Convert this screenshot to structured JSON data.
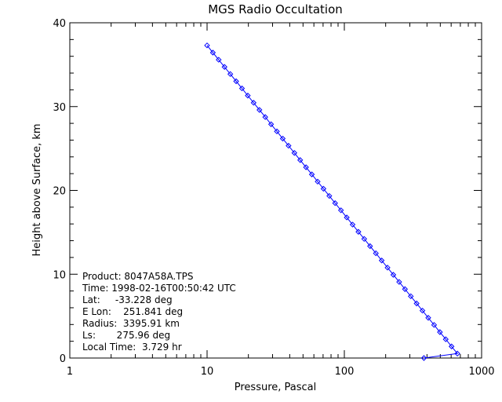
{
  "chart_data": {
    "type": "line",
    "title": "MGS Radio Occultation",
    "xlabel": "Pressure, Pascal",
    "ylabel": "Height above Surface, km",
    "xscale": "log",
    "xlim": [
      1,
      1000
    ],
    "ylim": [
      0,
      40
    ],
    "x_ticks": [
      "1",
      "10",
      "100",
      "1000"
    ],
    "y_ticks": [
      "0",
      "10",
      "20",
      "30",
      "40"
    ],
    "grid": false,
    "series": [
      {
        "marker": "diamond",
        "color": "#0000ff",
        "points": [
          [
            10.0,
            37.3
          ],
          [
            11.02,
            36.44
          ],
          [
            12.15,
            35.59
          ],
          [
            13.4,
            34.73
          ],
          [
            14.77,
            33.88
          ],
          [
            16.29,
            33.02
          ],
          [
            17.96,
            32.17
          ],
          [
            19.8,
            31.31
          ],
          [
            21.83,
            30.46
          ],
          [
            24.07,
            29.6
          ],
          [
            26.54,
            28.75
          ],
          [
            29.26,
            27.89
          ],
          [
            32.26,
            27.04
          ],
          [
            35.57,
            26.18
          ],
          [
            39.22,
            25.33
          ],
          [
            43.25,
            24.47
          ],
          [
            47.68,
            23.62
          ],
          [
            52.57,
            22.76
          ],
          [
            57.97,
            21.91
          ],
          [
            63.91,
            21.05
          ],
          [
            70.47,
            20.2
          ],
          [
            77.7,
            19.34
          ],
          [
            85.67,
            18.48
          ],
          [
            94.46,
            17.63
          ],
          [
            104.15,
            16.77
          ],
          [
            114.83,
            15.92
          ],
          [
            126.61,
            15.06
          ],
          [
            139.6,
            14.21
          ],
          [
            153.92,
            13.35
          ],
          [
            169.71,
            12.5
          ],
          [
            187.12,
            11.64
          ],
          [
            206.32,
            10.79
          ],
          [
            227.48,
            9.93
          ],
          [
            250.82,
            9.08
          ],
          [
            276.55,
            8.22
          ],
          [
            304.92,
            7.37
          ],
          [
            336.2,
            6.51
          ],
          [
            370.69,
            5.66
          ],
          [
            408.72,
            4.8
          ],
          [
            450.65,
            3.95
          ],
          [
            496.88,
            3.09
          ],
          [
            547.85,
            2.24
          ],
          [
            604.05,
            1.38
          ],
          [
            666.01,
            0.53
          ],
          [
            380.0,
            0.0
          ]
        ]
      }
    ],
    "annotation": {
      "product": "Product: 8047A58A.TPS",
      "time": "Time: 1998-02-16T00:50:42 UTC",
      "lat": "Lat:     -33.228 deg",
      "elon": "E Lon:    251.841 deg",
      "radius": "Radius:  3395.91 km",
      "ls": "Ls:       275.96 deg",
      "localtime": "Local Time:  3.729 hr"
    }
  }
}
